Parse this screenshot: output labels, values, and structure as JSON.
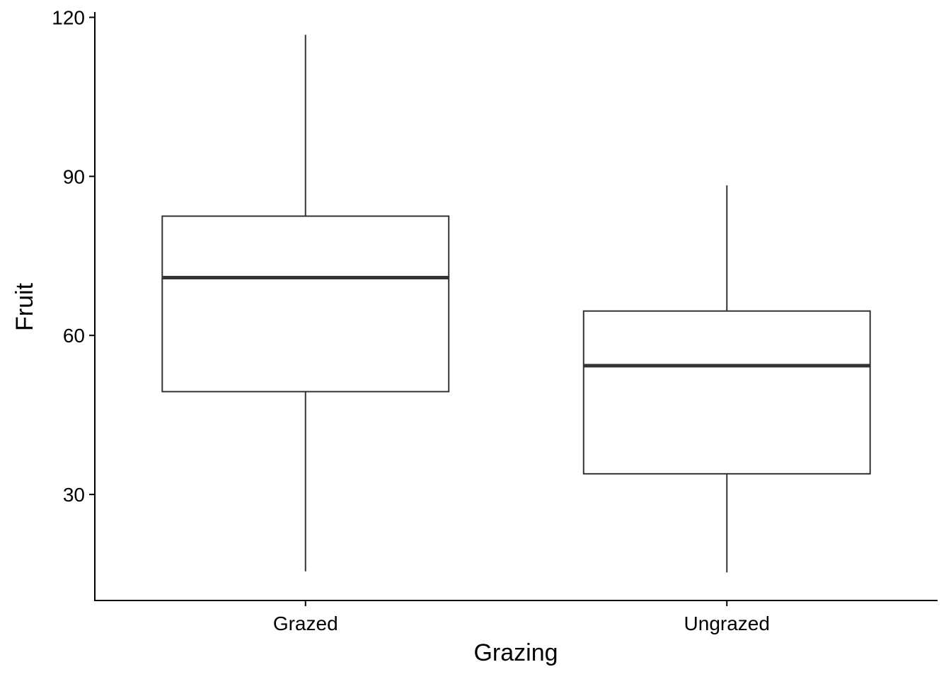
{
  "chart_data": {
    "type": "boxplot",
    "title": "",
    "xlabel": "Grazing",
    "ylabel": "Fruit",
    "ylim": [
      10,
      121
    ],
    "yticks": [
      30,
      60,
      90,
      120
    ],
    "ytick_labels": [
      "30",
      "60",
      "90",
      "120"
    ],
    "grid": false,
    "categories": [
      "Grazed",
      "Ungrazed"
    ],
    "boxes": [
      {
        "category": "Grazed",
        "min": 15.5,
        "q1": 49.4,
        "median": 70.9,
        "q3": 82.5,
        "max": 116.7
      },
      {
        "category": "Ungrazed",
        "min": 15.3,
        "q1": 33.9,
        "median": 54.3,
        "q3": 64.6,
        "max": 88.3
      }
    ],
    "colors": {
      "box_stroke": "#333333",
      "box_fill": "#ffffff",
      "axis": "#000000"
    }
  }
}
